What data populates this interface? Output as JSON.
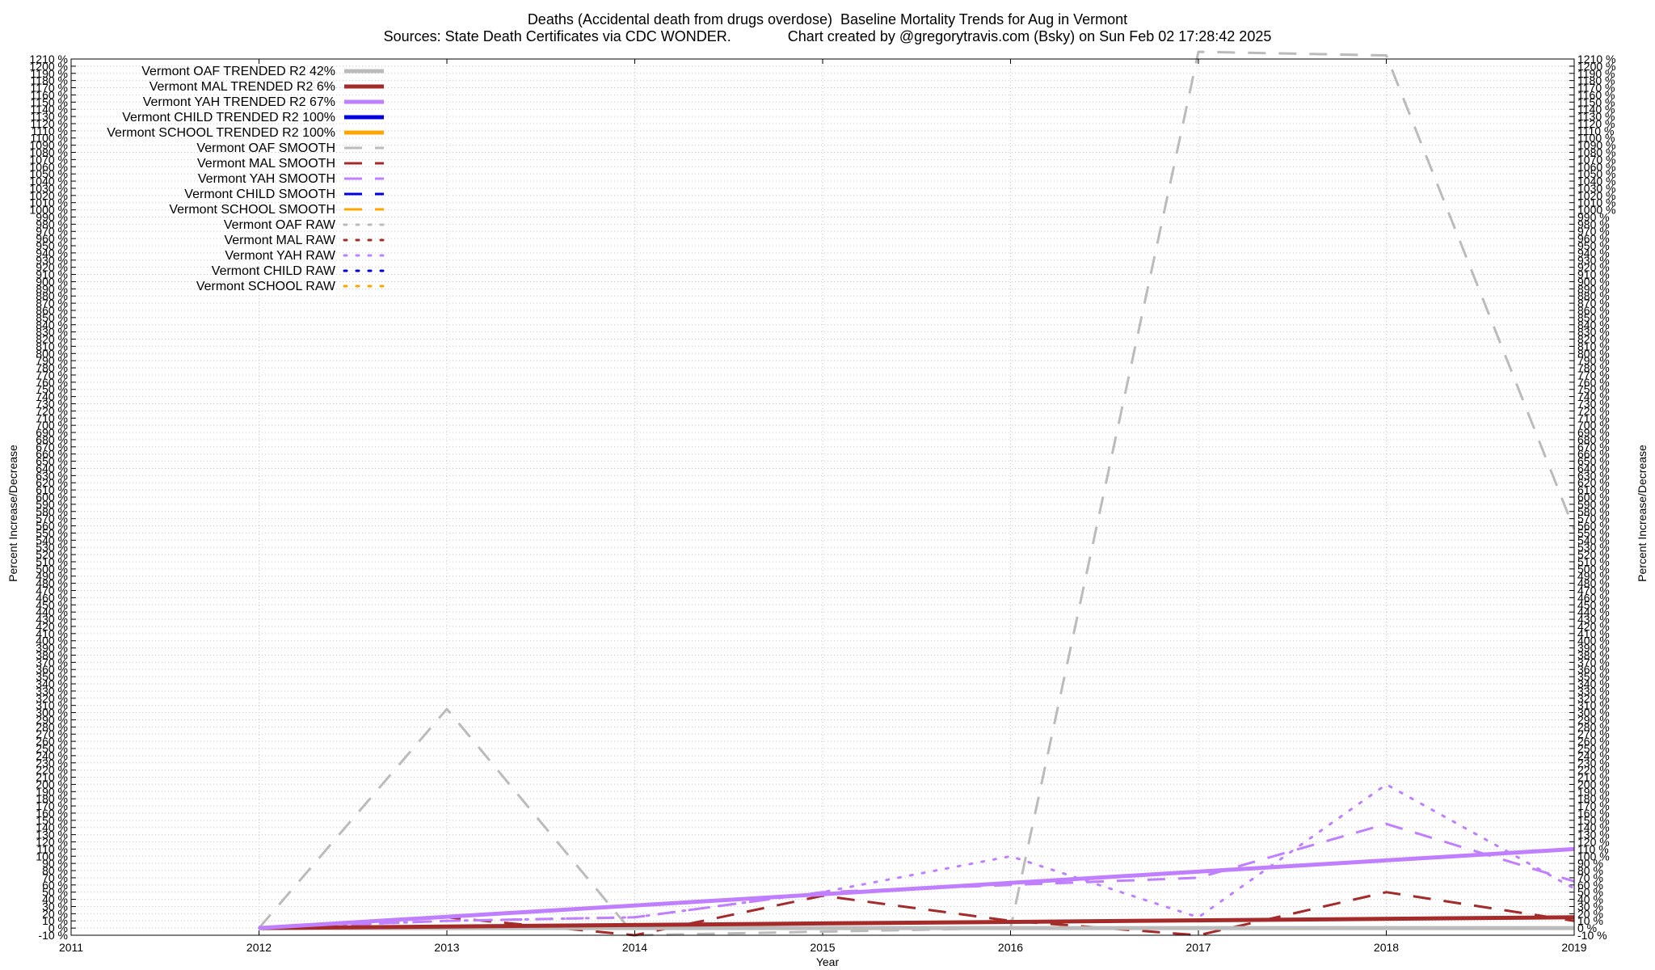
{
  "chart_data": {
    "type": "line",
    "title": "Deaths (Accidental death from drugs overdose)  Baseline Mortality Trends for Aug in Vermont",
    "subtitle": "Sources: State Death Certificates via CDC WONDER.              Chart created by @gregorytravis.com (Bsky) on Sun Feb 02 17:28:42 2025",
    "xlabel": "Year",
    "ylabel": "Percent Increase/Decrease",
    "ylabel_right": "Percent Increase/Decrease",
    "xlim": [
      2011,
      2019
    ],
    "ylim": [
      -10,
      1210
    ],
    "y_tick_step": 10,
    "y_tick_suffix": " %",
    "x_ticks": [
      "2011",
      "2012",
      "2013",
      "2014",
      "2015",
      "2016",
      "2017",
      "2018",
      "2019"
    ],
    "grid": true,
    "legend_position": "top-left",
    "series": [
      {
        "name": "Vermont OAF TRENDED R2  42%",
        "style": "solid",
        "color": "#bbbbbb",
        "x": [
          2012,
          2019
        ],
        "y": [
          0,
          0
        ]
      },
      {
        "name": "Vermont MAL TRENDED R2   6%",
        "style": "solid",
        "color": "#a52a2a",
        "x": [
          2012,
          2019
        ],
        "y": [
          0,
          15
        ]
      },
      {
        "name": "Vermont YAH TRENDED R2  67%",
        "style": "solid",
        "color": "#bf7fff",
        "x": [
          2012,
          2019
        ],
        "y": [
          0,
          110
        ]
      },
      {
        "name": "Vermont CHILD TRENDED R2 100%",
        "style": "solid",
        "color": "#0000e0",
        "x": [],
        "y": []
      },
      {
        "name": "Vermont SCHOOL TRENDED R2 100%",
        "style": "solid",
        "color": "#ffa500",
        "x": [],
        "y": []
      },
      {
        "name": "Vermont OAF SMOOTH",
        "style": "dashed",
        "color": "#bbbbbb",
        "x": [
          2012,
          2013,
          2014,
          2015,
          2016,
          2017,
          2018,
          2019
        ],
        "y": [
          0,
          305,
          -10,
          -5,
          0,
          1220,
          1215,
          555
        ]
      },
      {
        "name": "Vermont MAL SMOOTH",
        "style": "dashed",
        "color": "#a52a2a",
        "x": [
          2012,
          2013,
          2014,
          2015,
          2016,
          2017,
          2018,
          2019
        ],
        "y": [
          0,
          15,
          -10,
          45,
          10,
          -10,
          50,
          10
        ]
      },
      {
        "name": "Vermont YAH SMOOTH",
        "style": "dashed",
        "color": "#bf7fff",
        "x": [
          2012,
          2013,
          2014,
          2015,
          2016,
          2017,
          2018,
          2019
        ],
        "y": [
          0,
          10,
          15,
          50,
          60,
          70,
          145,
          65
        ]
      },
      {
        "name": "Vermont CHILD SMOOTH",
        "style": "dashed",
        "color": "#0000e0",
        "x": [],
        "y": []
      },
      {
        "name": "Vermont SCHOOL SMOOTH",
        "style": "dashed",
        "color": "#ffa500",
        "x": [],
        "y": []
      },
      {
        "name": "Vermont OAF RAW",
        "style": "dotted",
        "color": "#bbbbbb",
        "x": [],
        "y": []
      },
      {
        "name": "Vermont MAL RAW",
        "style": "dotted",
        "color": "#a52a2a",
        "x": [],
        "y": []
      },
      {
        "name": "Vermont YAH RAW",
        "style": "dotted",
        "color": "#bf7fff",
        "x": [
          2012,
          2013,
          2014,
          2015,
          2016,
          2017,
          2018,
          2019
        ],
        "y": [
          0,
          10,
          15,
          50,
          100,
          15,
          200,
          55
        ]
      },
      {
        "name": "Vermont CHILD RAW",
        "style": "dotted",
        "color": "#0000e0",
        "x": [],
        "y": []
      },
      {
        "name": "Vermont SCHOOL RAW",
        "style": "dotted",
        "color": "#ffa500",
        "x": [],
        "y": []
      }
    ]
  }
}
